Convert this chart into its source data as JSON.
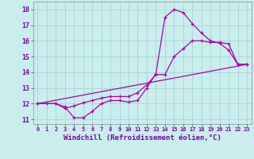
{
  "xlabel": "Windchill (Refroidissement éolien,°C)",
  "bg_color": "#caeeed",
  "grid_color": "#aad8d8",
  "line_color": "#aa00aa",
  "axis_color": "#7700aa",
  "xlim": [
    -0.5,
    23.5
  ],
  "ylim": [
    10.7,
    18.5
  ],
  "yticks": [
    11,
    12,
    13,
    14,
    15,
    16,
    17,
    18
  ],
  "xticks": [
    0,
    1,
    2,
    3,
    4,
    5,
    6,
    7,
    8,
    9,
    10,
    11,
    12,
    13,
    14,
    15,
    16,
    17,
    18,
    19,
    20,
    21,
    22,
    23
  ],
  "line1_x": [
    0,
    1,
    2,
    3,
    4,
    5,
    6,
    7,
    8,
    9,
    10,
    11,
    12,
    13,
    14,
    15,
    16,
    17,
    18,
    19,
    20,
    21,
    22,
    23
  ],
  "line1_y": [
    12,
    12,
    12,
    11.8,
    11.1,
    11.1,
    11.5,
    12.0,
    12.2,
    12.2,
    12.1,
    12.2,
    13.0,
    13.9,
    17.5,
    18.0,
    17.8,
    17.1,
    16.5,
    16.0,
    15.85,
    15.4,
    14.5,
    14.5
  ],
  "line2_x": [
    0,
    2,
    3,
    4,
    5,
    6,
    7,
    8,
    9,
    10,
    11,
    12,
    13,
    14,
    15,
    16,
    17,
    18,
    19,
    20,
    21,
    22,
    23
  ],
  "line2_y": [
    12,
    12,
    11.7,
    11.85,
    12.05,
    12.2,
    12.35,
    12.45,
    12.45,
    12.45,
    12.7,
    13.2,
    13.85,
    13.85,
    15.0,
    15.5,
    16.0,
    16.0,
    15.9,
    15.9,
    15.8,
    14.5,
    14.5
  ],
  "line3_x": [
    0,
    23
  ],
  "line3_y": [
    12.0,
    14.5
  ]
}
